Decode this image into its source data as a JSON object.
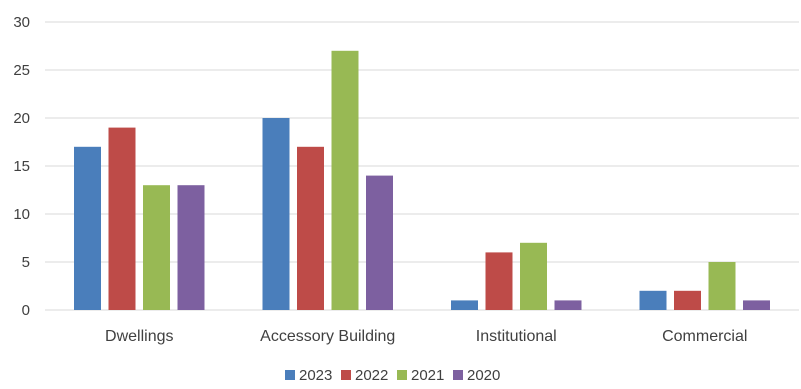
{
  "chart_data": {
    "type": "bar",
    "title": "",
    "xlabel": "",
    "ylabel": "",
    "categories": [
      "Dwellings",
      "Accessory Building",
      "Institutional",
      "Commercial"
    ],
    "series": [
      {
        "name": "2023",
        "color": "#4a7ebb",
        "values": [
          17,
          20,
          1,
          2
        ]
      },
      {
        "name": "2022",
        "color": "#be4b48",
        "values": [
          19,
          17,
          6,
          2
        ]
      },
      {
        "name": "2021",
        "color": "#98b954",
        "values": [
          13,
          27,
          7,
          5
        ]
      },
      {
        "name": "2020",
        "color": "#7d60a0",
        "values": [
          13,
          14,
          1,
          1
        ]
      }
    ],
    "ylim": [
      0,
      30
    ],
    "yticks": [
      "0",
      "5",
      "10",
      "15",
      "20",
      "25",
      "30"
    ],
    "grid": true,
    "legend_position": "bottom"
  }
}
